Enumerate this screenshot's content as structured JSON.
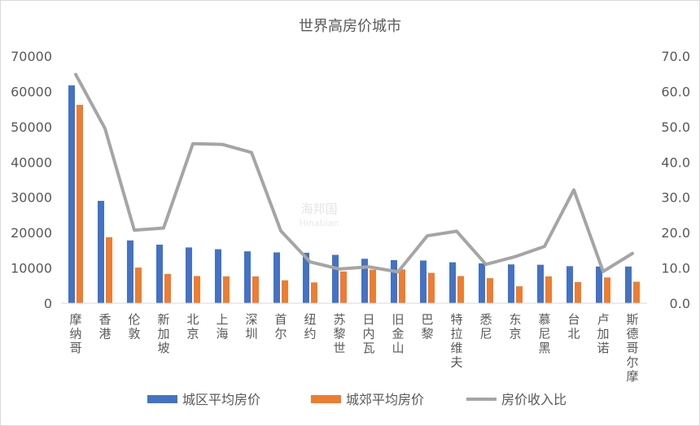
{
  "chart_data": {
    "type": "bar",
    "title": "世界高房价城市",
    "categories": [
      "摩纳哥",
      "香港",
      "伦敦",
      "新加坡",
      "北京",
      "上海",
      "深圳",
      "首尔",
      "纽约",
      "苏黎世",
      "日内瓦",
      "旧金山",
      "巴黎",
      "特拉维夫",
      "悉尼",
      "东京",
      "慕尼黑",
      "台北",
      "卢加诺",
      "斯德哥尔摩"
    ],
    "series": [
      {
        "name": "城区平均房价",
        "type": "bar",
        "axis": "left",
        "color": "#4472c4",
        "values": [
          61700,
          29000,
          17800,
          16600,
          15800,
          15300,
          14700,
          14400,
          14300,
          13700,
          12600,
          12200,
          12100,
          11600,
          11300,
          11000,
          10900,
          10500,
          10400,
          10400
        ]
      },
      {
        "name": "城郊平均房价",
        "type": "bar",
        "axis": "left",
        "color": "#ed7d31",
        "values": [
          56200,
          18700,
          10100,
          8300,
          7700,
          7600,
          7600,
          6500,
          5900,
          9000,
          9500,
          9600,
          8600,
          7700,
          7100,
          4800,
          7600,
          6000,
          7300,
          6100
        ]
      },
      {
        "name": "房价收入比",
        "type": "line",
        "axis": "right",
        "color": "#a5a5a5",
        "values": [
          64.8,
          49.5,
          20.7,
          21.3,
          45.2,
          45.0,
          42.7,
          20.5,
          11.7,
          9.7,
          10.3,
          8.9,
          19.1,
          20.4,
          11.0,
          13.2,
          16.1,
          32.1,
          9.0,
          14.1
        ]
      }
    ],
    "y_left": {
      "range": [
        0,
        70000
      ],
      "ticks": [
        "0",
        "10000",
        "20000",
        "30000",
        "40000",
        "50000",
        "60000",
        "70000"
      ]
    },
    "y_right": {
      "range": [
        0,
        70
      ],
      "ticks": [
        "0.0",
        "10.0",
        "20.0",
        "30.0",
        "40.0",
        "50.0",
        "60.0",
        "70.0"
      ]
    },
    "grid": false,
    "legend_position": "bottom"
  },
  "watermark": {
    "text": "海邦国",
    "subtext": "Hinabian"
  }
}
